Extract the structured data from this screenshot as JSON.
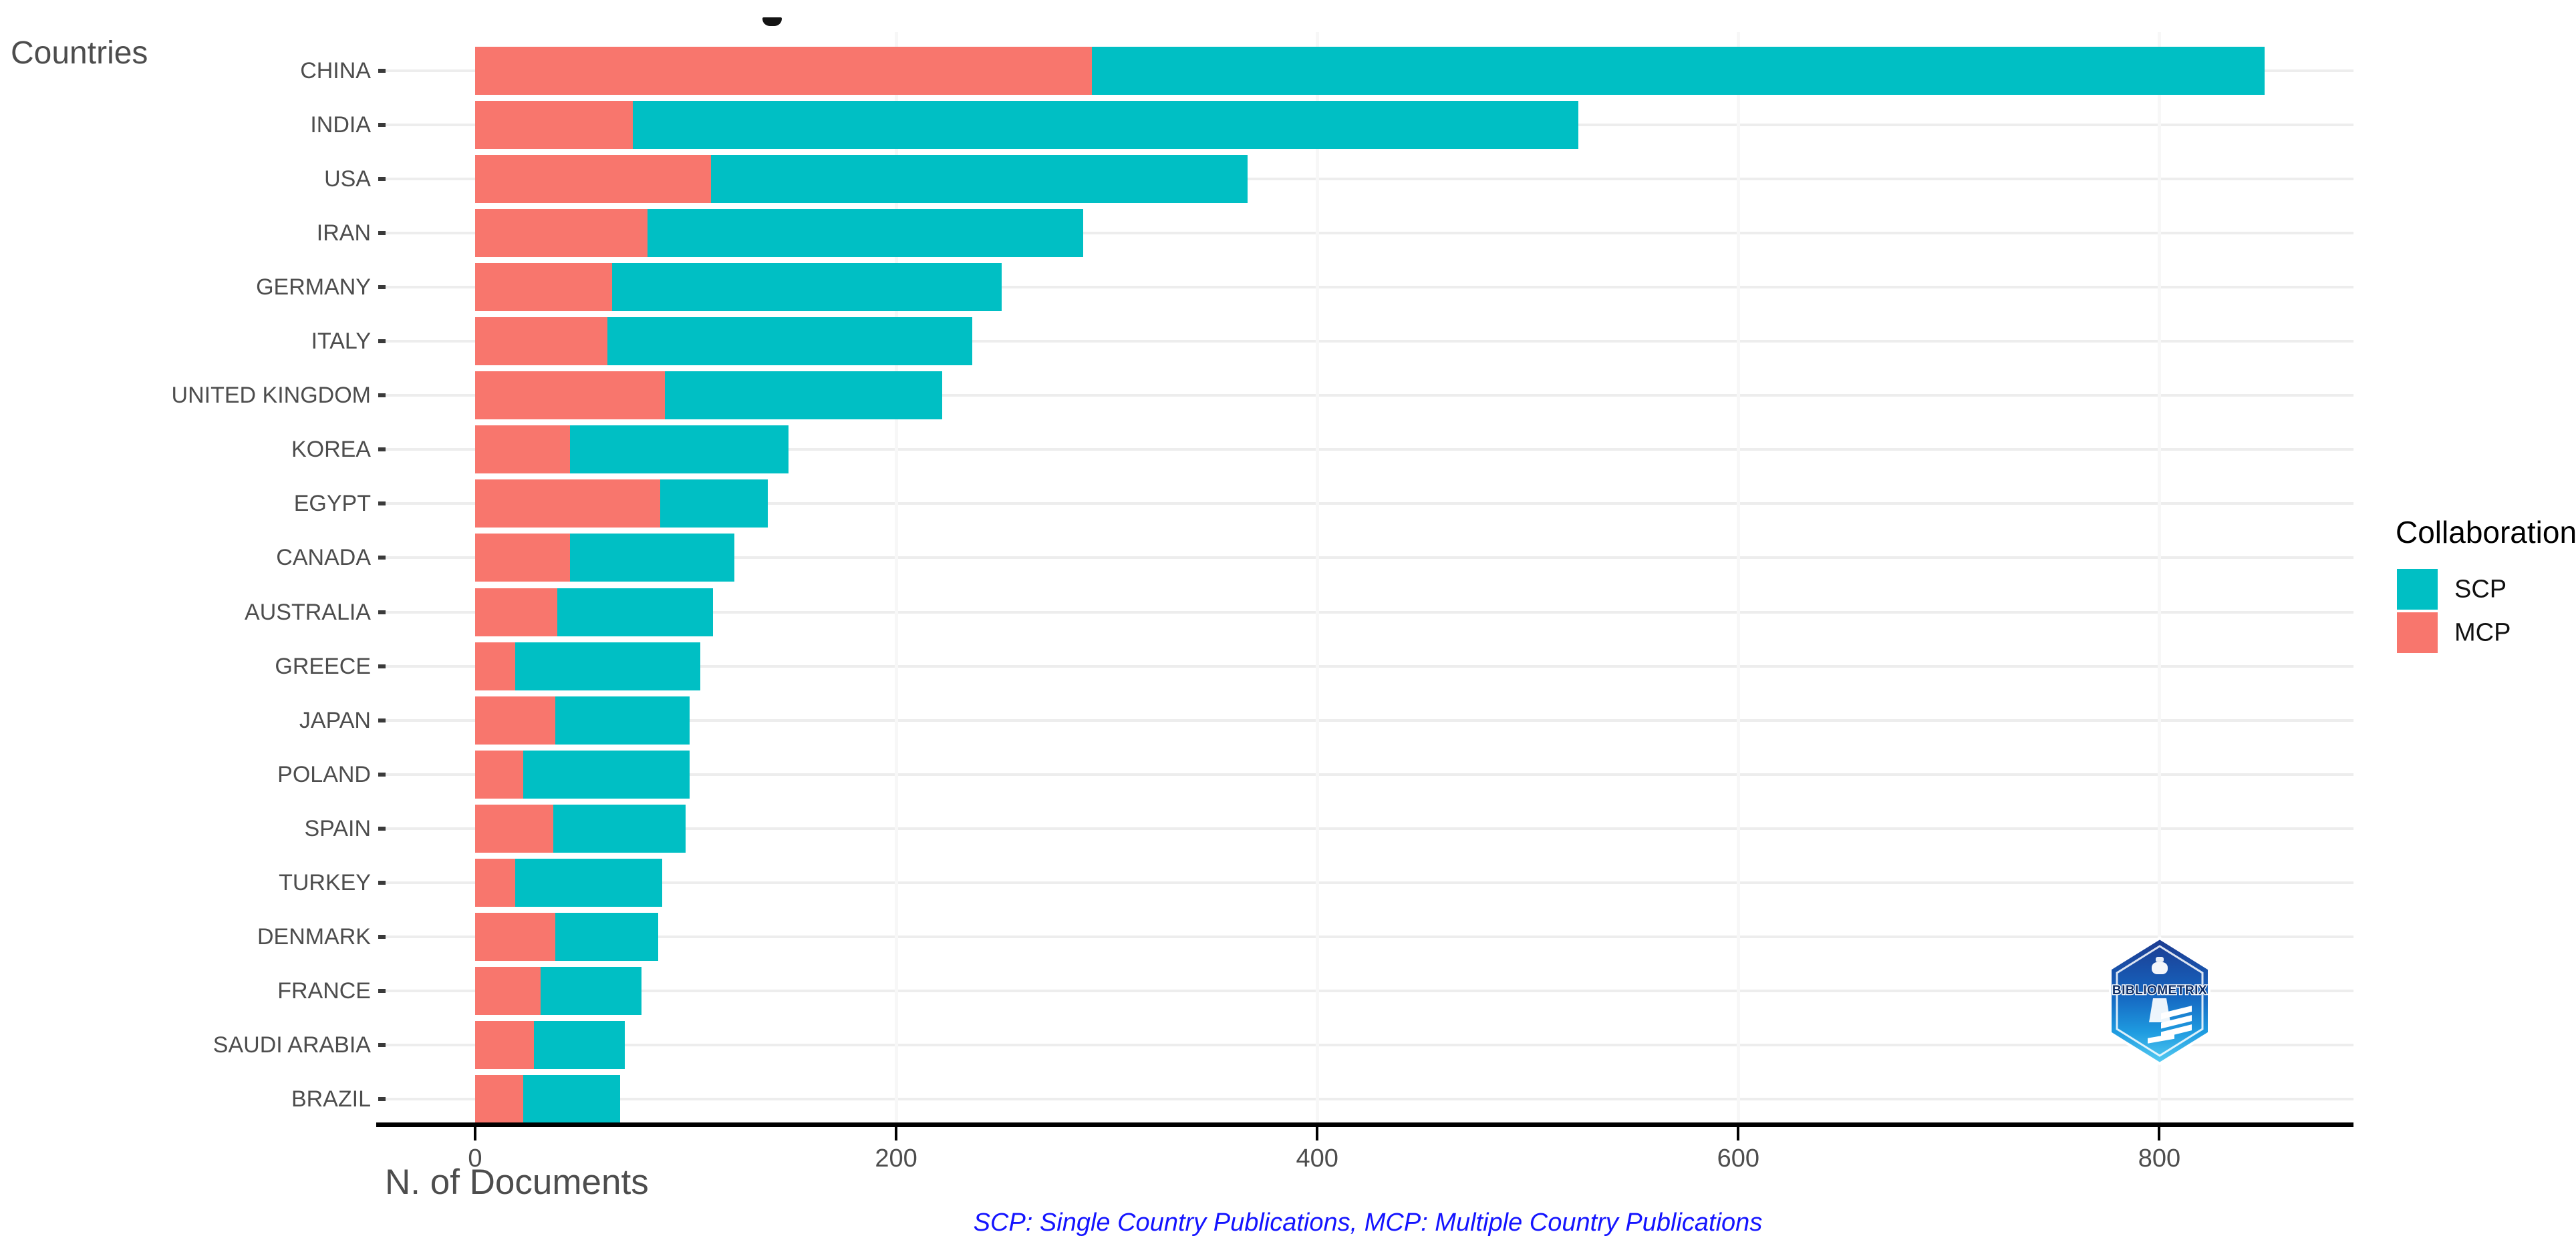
{
  "page": {
    "y_axis_title": "Countries",
    "x_axis_title": "N. of Documents",
    "footnote": "SCP: Single Country Publications, MCP: Multiple Country Publications",
    "clipped_title_mark_icon": "cropped-title-descender-fragment"
  },
  "legend": {
    "title": "Collaboration",
    "entries": [
      {
        "label": "SCP",
        "color": "#00BFC4"
      },
      {
        "label": "MCP",
        "color": "#F8766D"
      }
    ]
  },
  "logo": {
    "icon": "bibliometrix-logo",
    "text": "BIBLIOMETRIX"
  },
  "chart_data": {
    "type": "bar",
    "orientation": "horizontal",
    "stacked": true,
    "title": "",
    "xlabel": "N. of Documents",
    "ylabel": "Countries",
    "xlim": [
      0,
      893
    ],
    "x_ticks": [
      0,
      200,
      400,
      600,
      800
    ],
    "grid": true,
    "legend_position": "right",
    "categories": [
      "CHINA",
      "INDIA",
      "USA",
      "IRAN",
      "GERMANY",
      "ITALY",
      "UNITED KINGDOM",
      "KOREA",
      "EGYPT",
      "CANADA",
      "AUSTRALIA",
      "GREECE",
      "JAPAN",
      "POLAND",
      "SPAIN",
      "TURKEY",
      "DENMARK",
      "FRANCE",
      "SAUDI ARABIA",
      "BRAZIL"
    ],
    "series": [
      {
        "name": "MCP",
        "color": "#F8766D",
        "values": [
          293,
          75,
          112,
          82,
          65,
          63,
          90,
          45,
          88,
          45,
          39,
          19,
          38,
          23,
          37,
          19,
          38,
          31,
          28,
          23
        ]
      },
      {
        "name": "SCP",
        "color": "#00BFC4",
        "values": [
          557,
          449,
          255,
          207,
          185,
          173,
          132,
          104,
          51,
          78,
          74,
          88,
          64,
          79,
          63,
          70,
          49,
          48,
          43,
          46
        ]
      }
    ],
    "totals": [
      850,
      524,
      367,
      289,
      250,
      236,
      222,
      149,
      139,
      123,
      113,
      107,
      102,
      102,
      100,
      89,
      87,
      79,
      71,
      69
    ],
    "note": "MCP segment drawn first (left, red), SCP stacked after (teal)"
  }
}
